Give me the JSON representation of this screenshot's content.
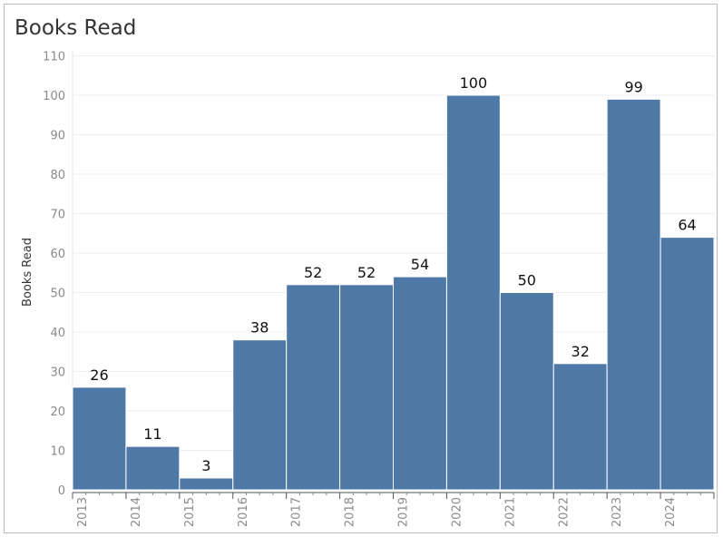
{
  "chart_data": {
    "type": "bar",
    "title": "Books Read",
    "xlabel": "",
    "ylabel": "Books Read",
    "categories": [
      "2013",
      "2014",
      "2015",
      "2016",
      "2017",
      "2018",
      "2019",
      "2020",
      "2021",
      "2022",
      "2023",
      "2024"
    ],
    "values": [
      26,
      11,
      3,
      38,
      52,
      52,
      54,
      100,
      50,
      32,
      99,
      64
    ],
    "ylim": [
      0,
      110
    ],
    "yticks": [
      0,
      10,
      20,
      30,
      40,
      50,
      60,
      70,
      80,
      90,
      100,
      110
    ],
    "grid": true,
    "bar_color": "#4e79a7",
    "legend": "none"
  }
}
